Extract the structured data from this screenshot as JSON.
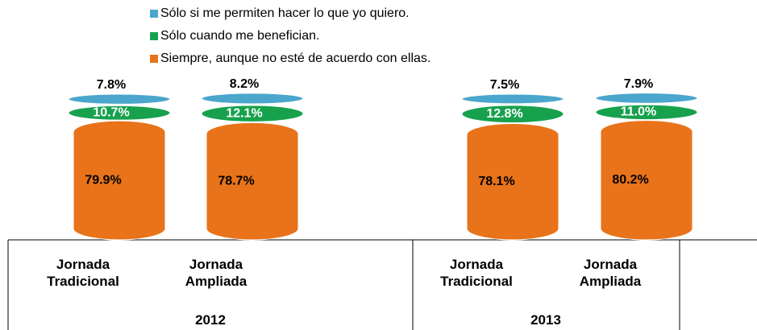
{
  "chart_data": {
    "type": "bar",
    "stacked": true,
    "categories": [
      "Jornada Tradicional",
      "Jornada Ampliada",
      "Jornada Tradicional",
      "Jornada Ampliada"
    ],
    "groups": [
      "2012",
      "2013"
    ],
    "series": [
      {
        "name": "Siempre, aunque no esté de acuerdo con ellas.",
        "color": "#e8731a",
        "values": [
          79.9,
          78.7,
          78.1,
          80.2
        ],
        "value_labels": [
          "79.9%",
          "78.7%",
          "78.1%",
          "80.2%"
        ]
      },
      {
        "name": "Sólo cuando me benefician.",
        "color": "#17a14d",
        "values": [
          10.7,
          12.1,
          12.8,
          11.0
        ],
        "value_labels": [
          "10.7%",
          "12.1%",
          "12.8%",
          "11.0%"
        ]
      },
      {
        "name": "Sólo si me permiten hacer lo que yo quiero.",
        "color": "#4aa6cc",
        "values": [
          7.8,
          8.2,
          7.5,
          7.9
        ],
        "value_labels": [
          "7.8%",
          "8.2%",
          "7.5%",
          "7.9%"
        ]
      }
    ]
  }
}
